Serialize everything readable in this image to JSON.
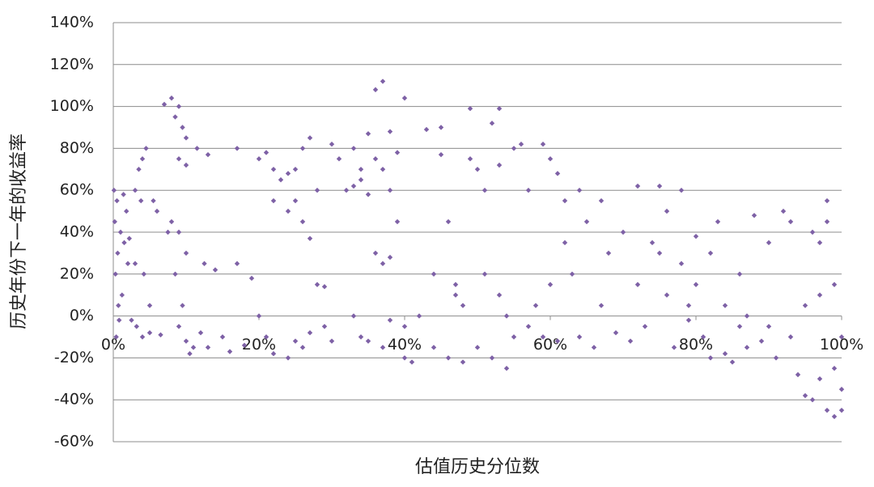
{
  "chart_data": {
    "type": "scatter",
    "x_label": "估值历史分位数",
    "y_label": "历史年份下一年的收益率",
    "color": "#7e61a6",
    "grid": true,
    "xlim": [
      0,
      100
    ],
    "xticks": [
      {
        "value": 0,
        "label": "0%"
      },
      {
        "value": 20,
        "label": "20%"
      },
      {
        "value": 40,
        "label": "40%"
      },
      {
        "value": 60,
        "label": "60%"
      },
      {
        "value": 80,
        "label": "80%"
      },
      {
        "value": 100,
        "label": "100%"
      }
    ],
    "ylim": [
      -60,
      140
    ],
    "yticks": [
      {
        "value": -60,
        "label": "-60%"
      },
      {
        "value": -40,
        "label": "-40%"
      },
      {
        "value": -20,
        "label": "-20%"
      },
      {
        "value": 0,
        "label": "0%"
      },
      {
        "value": 20,
        "label": "20%"
      },
      {
        "value": 40,
        "label": "40%"
      },
      {
        "value": 60,
        "label": "60%"
      },
      {
        "value": 80,
        "label": "80%"
      },
      {
        "value": 100,
        "label": "100%"
      },
      {
        "value": 120,
        "label": "120%"
      },
      {
        "value": 140,
        "label": "140%"
      }
    ],
    "x": [
      0.2,
      0.3,
      0.5,
      0.6,
      0.8,
      1,
      1.2,
      1.5,
      1.8,
      2,
      0.4,
      2.2,
      0.1,
      0.7,
      1.4,
      3,
      3.5,
      4,
      4.5,
      3.2,
      4,
      5,
      3.8,
      5.5,
      6,
      5,
      4.2,
      3,
      6.5,
      2.5,
      7,
      8,
      8.5,
      9,
      9.5,
      10,
      9,
      10,
      8,
      9,
      10,
      9.5,
      10,
      11,
      9,
      8.5,
      10.5,
      7.5,
      11.5,
      12,
      13,
      13,
      14,
      12.5,
      15,
      16,
      17,
      17,
      18,
      19,
      20,
      21,
      22,
      23,
      24,
      25,
      26,
      27,
      20,
      21,
      22,
      24,
      25,
      26,
      27,
      25,
      26,
      27,
      28,
      28,
      29,
      30,
      31,
      29,
      30,
      22,
      24,
      32,
      33,
      34,
      35,
      33,
      34,
      35,
      36,
      37,
      38,
      36,
      37,
      38,
      39,
      36,
      37,
      38,
      33,
      34,
      35,
      37,
      38,
      39,
      40,
      40,
      41,
      40,
      42,
      43,
      44,
      45,
      45,
      46,
      47,
      48,
      48,
      49,
      49,
      50,
      50,
      51,
      52,
      53,
      53,
      52,
      54,
      55,
      55,
      44,
      46,
      47,
      51,
      53,
      54,
      56,
      57,
      57,
      58,
      59,
      59,
      60,
      60,
      61,
      62,
      61,
      62,
      63,
      64,
      65,
      64,
      66,
      67,
      67,
      68,
      69,
      70,
      71,
      72,
      72,
      73,
      74,
      75,
      75,
      76,
      76,
      77,
      78,
      78,
      79,
      80,
      80,
      81,
      82,
      82,
      83,
      84,
      84,
      85,
      86,
      87,
      87,
      88,
      89,
      90,
      90,
      91,
      92,
      93,
      93,
      94,
      95,
      96,
      96,
      97,
      97,
      98,
      98,
      98,
      99,
      99,
      100,
      100,
      100,
      99,
      97,
      95,
      86,
      79
    ],
    "values": [
      45,
      20,
      55,
      30,
      -2,
      40,
      10,
      35,
      50,
      25,
      -10,
      37,
      60,
      5,
      58,
      60,
      70,
      75,
      80,
      -5,
      -10,
      -8,
      55,
      55,
      50,
      5,
      20,
      25,
      -9,
      -2,
      101,
      104,
      95,
      100,
      90,
      85,
      75,
      72,
      45,
      40,
      30,
      5,
      -12,
      -15,
      -5,
      20,
      -18,
      40,
      80,
      -8,
      77,
      -15,
      22,
      25,
      -10,
      -17,
      80,
      25,
      -14,
      18,
      75,
      78,
      70,
      65,
      68,
      70,
      80,
      85,
      0,
      -10,
      -18,
      -20,
      -12,
      -15,
      -8,
      55,
      45,
      37,
      60,
      15,
      14,
      82,
      75,
      -5,
      -12,
      55,
      50,
      60,
      62,
      65,
      58,
      80,
      70,
      87,
      108,
      112,
      88,
      75,
      70,
      60,
      78,
      30,
      25,
      28,
      0,
      -10,
      -12,
      -15,
      -2,
      45,
      104,
      -20,
      -22,
      -5,
      0,
      89,
      20,
      77,
      90,
      -20,
      10,
      -22,
      5,
      99,
      75,
      70,
      -15,
      20,
      92,
      99,
      72,
      -20,
      -25,
      80,
      -10,
      -15,
      45,
      15,
      60,
      10,
      0,
      82,
      -5,
      60,
      5,
      -10,
      82,
      75,
      15,
      68,
      55,
      -12,
      35,
      20,
      60,
      45,
      -10,
      -15,
      5,
      55,
      30,
      -8,
      40,
      -12,
      62,
      15,
      -5,
      35,
      62,
      30,
      50,
      10,
      -15,
      60,
      25,
      -2,
      38,
      15,
      -10,
      30,
      -20,
      45,
      5,
      -18,
      -22,
      20,
      0,
      -15,
      48,
      -12,
      35,
      -5,
      -20,
      50,
      45,
      -10,
      -28,
      -38,
      40,
      -40,
      10,
      35,
      55,
      -45,
      45,
      15,
      -25,
      -45,
      -35,
      -10,
      -48,
      -30,
      5,
      -5,
      5
    ]
  }
}
